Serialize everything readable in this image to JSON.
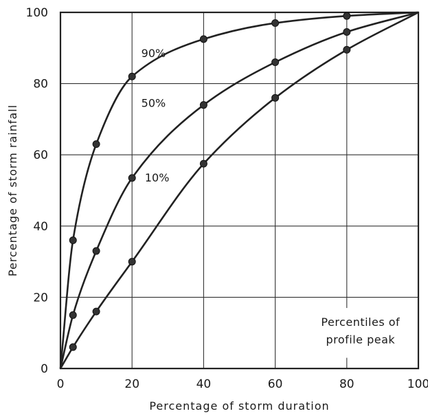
{
  "chart_data": {
    "type": "line",
    "xlabel": "Percentage of storm duration",
    "ylabel": "Percentage of storm rainfall",
    "xlim": [
      0,
      100
    ],
    "ylim": [
      0,
      100
    ],
    "x_ticks": [
      "0",
      "20",
      "40",
      "60",
      "80",
      "100"
    ],
    "y_ticks": [
      "0",
      "20",
      "40",
      "60",
      "80",
      "100"
    ],
    "grid": true,
    "legend_title": [
      "Percentiles of",
      "profile peak"
    ],
    "legend_placement": "bottom-right",
    "series": [
      {
        "name": "90%",
        "x": [
          0,
          3.5,
          10,
          20,
          40,
          60,
          80,
          100
        ],
        "y": [
          0,
          36,
          63,
          82,
          92.5,
          97,
          99,
          100
        ]
      },
      {
        "name": "50%",
        "x": [
          0,
          3.5,
          10,
          20,
          40,
          60,
          80,
          100
        ],
        "y": [
          0,
          15,
          33,
          53.5,
          74,
          86,
          94.5,
          100
        ]
      },
      {
        "name": "10%",
        "x": [
          0,
          3.5,
          10,
          20,
          40,
          60,
          80,
          100
        ],
        "y": [
          0,
          6,
          16,
          30,
          57.5,
          76,
          89.5,
          100
        ]
      }
    ]
  }
}
